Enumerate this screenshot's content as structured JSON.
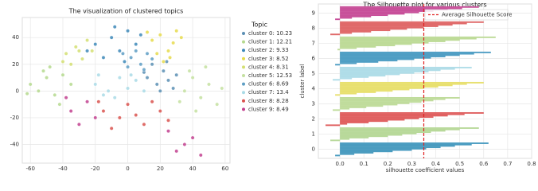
{
  "chart_data": [
    {
      "type": "scatter",
      "title": "The visualization of clustered topics",
      "legend_title": "Topic",
      "grid": true,
      "xlim": [
        -65,
        63
      ],
      "ylim": [
        -54,
        55
      ],
      "xticks": [
        -60,
        -40,
        -20,
        0,
        20,
        40,
        60
      ],
      "yticks": [
        -40,
        -20,
        0,
        20,
        40
      ],
      "series": [
        {
          "name": "cluster 0: 10.23",
          "color": "#5b8fb4",
          "x": [
            12,
            18,
            22,
            25,
            15,
            28,
            20,
            10,
            30,
            24
          ],
          "y": [
            10,
            5,
            15,
            8,
            20,
            2,
            0,
            14,
            12,
            22
          ]
        },
        {
          "name": "cluster 1: 12.21",
          "color": "#b5d98e",
          "x": [
            -60,
            -55,
            -50,
            -45,
            -40,
            -48,
            -35,
            -62,
            -42,
            -52
          ],
          "y": [
            5,
            0,
            10,
            -3,
            12,
            18,
            5,
            -2,
            -10,
            15
          ]
        },
        {
          "name": "cluster 2: 9.33",
          "color": "#3d88b9",
          "x": [
            -20,
            -10,
            -5,
            0,
            -15,
            5,
            -25,
            8,
            -2,
            -8
          ],
          "y": [
            35,
            40,
            30,
            45,
            25,
            35,
            30,
            42,
            22,
            48
          ]
        },
        {
          "name": "cluster 3: 8.52",
          "color": "#e6db4c",
          "x": [
            15,
            20,
            25,
            30,
            18,
            28,
            22,
            33,
            12,
            26
          ],
          "y": [
            38,
            42,
            30,
            45,
            28,
            36,
            22,
            40,
            44,
            25
          ]
        },
        {
          "name": "cluster 4: 8.31",
          "color": "#d3df72",
          "x": [
            -38,
            -32,
            -28,
            -35,
            -25,
            -30,
            -40,
            -22
          ],
          "y": [
            28,
            33,
            24,
            20,
            38,
            30,
            22,
            30
          ]
        },
        {
          "name": "cluster 5: 12.53",
          "color": "#c4e0a0",
          "x": [
            35,
            40,
            45,
            50,
            55,
            42,
            38,
            48,
            58,
            32
          ],
          "y": [
            0,
            10,
            -5,
            5,
            -10,
            -15,
            15,
            18,
            2,
            -8
          ]
        },
        {
          "name": "cluster 6: 8.69",
          "color": "#5e9ec4",
          "x": [
            2,
            8,
            0,
            12,
            5,
            -3,
            10,
            15
          ],
          "y": [
            25,
            20,
            18,
            28,
            30,
            28,
            16,
            24
          ]
        },
        {
          "name": "cluster 7: 13.4",
          "color": "#a9dbe6",
          "x": [
            -20,
            -12,
            -5,
            0,
            5,
            -15,
            10,
            -8,
            2,
            -18
          ],
          "y": [
            5,
            0,
            10,
            2,
            8,
            -3,
            0,
            -5,
            12,
            12
          ]
        },
        {
          "name": "cluster 8: 8.28",
          "color": "#d9534f",
          "x": [
            -15,
            -5,
            0,
            10,
            20,
            -10,
            5,
            25,
            15,
            -18
          ],
          "y": [
            -15,
            -20,
            -10,
            -25,
            -15,
            -28,
            -18,
            -22,
            -8,
            -8
          ]
        },
        {
          "name": "cluster 9: 8.49",
          "color": "#c2418f",
          "x": [
            -35,
            -30,
            -25,
            -38,
            -20,
            25,
            35,
            40,
            30,
            45
          ],
          "y": [
            -15,
            -25,
            -8,
            -5,
            -20,
            -30,
            -40,
            -35,
            -45,
            -48
          ]
        }
      ]
    },
    {
      "type": "silhouette",
      "title": "The Silhouette plot for various clusters",
      "xlabel": "silhouette coefficient values",
      "ylabel": "cluster label",
      "grid": true,
      "xlim": [
        -0.09,
        0.8
      ],
      "ylim": [
        -0.6,
        9.6
      ],
      "xticks": [
        {
          "value": 0,
          "label": "0.0"
        },
        0.1,
        0.2,
        0.3,
        0.4,
        0.5,
        0.6,
        0.7,
        0.8
      ],
      "yticks": [
        0,
        1,
        2,
        3,
        4,
        5,
        6,
        7,
        8,
        9
      ],
      "average": 0.35,
      "average_label": "Average Silhouette Score",
      "average_color": "#e02020",
      "series": [
        {
          "color": "#4a9cc0",
          "values": [
            0.62,
            0.55,
            0.48,
            0.42,
            0.36,
            0.3,
            0.22,
            0.14,
            0.06,
            -0.02
          ]
        },
        {
          "color": "#b8d99a",
          "values": [
            0.58,
            0.5,
            0.44,
            0.38,
            0.32,
            0.26,
            0.2,
            0.12,
            0.04,
            -0.04
          ]
        },
        {
          "color": "#e06060",
          "values": [
            0.6,
            0.52,
            0.45,
            0.39,
            0.33,
            0.27,
            0.2,
            0.12,
            0.03,
            -0.06
          ]
        },
        {
          "color": "#c0dc9c",
          "values": [
            0.5,
            0.44,
            0.39,
            0.34,
            0.29,
            0.24,
            0.18,
            0.11,
            0.04,
            -0.03
          ]
        },
        {
          "color": "#e8e070",
          "values": [
            0.6,
            0.53,
            0.47,
            0.41,
            0.35,
            0.29,
            0.22,
            0.15,
            0.07,
            -0.02
          ]
        },
        {
          "color": "#b0dde8",
          "values": [
            0.55,
            0.48,
            0.42,
            0.37,
            0.31,
            0.25,
            0.19,
            0.12,
            0.05,
            -0.03
          ]
        },
        {
          "color": "#4f9ec4",
          "values": [
            0.63,
            0.56,
            0.5,
            0.44,
            0.38,
            0.31,
            0.24,
            0.16,
            0.07,
            -0.02
          ]
        },
        {
          "color": "#bedb98",
          "values": [
            0.65,
            0.57,
            0.5,
            0.44,
            0.37,
            0.3,
            0.23,
            0.15,
            0.07,
            -0.01
          ]
        },
        {
          "color": "#e06a6a",
          "values": [
            0.6,
            0.53,
            0.47,
            0.41,
            0.35,
            0.28,
            0.21,
            0.13,
            0.05,
            -0.04
          ]
        },
        {
          "color": "#c8509a",
          "values": [
            0.58,
            0.51,
            0.45,
            0.39,
            0.33,
            0.27,
            0.2,
            0.13,
            0.05,
            -0.02
          ]
        }
      ]
    }
  ]
}
